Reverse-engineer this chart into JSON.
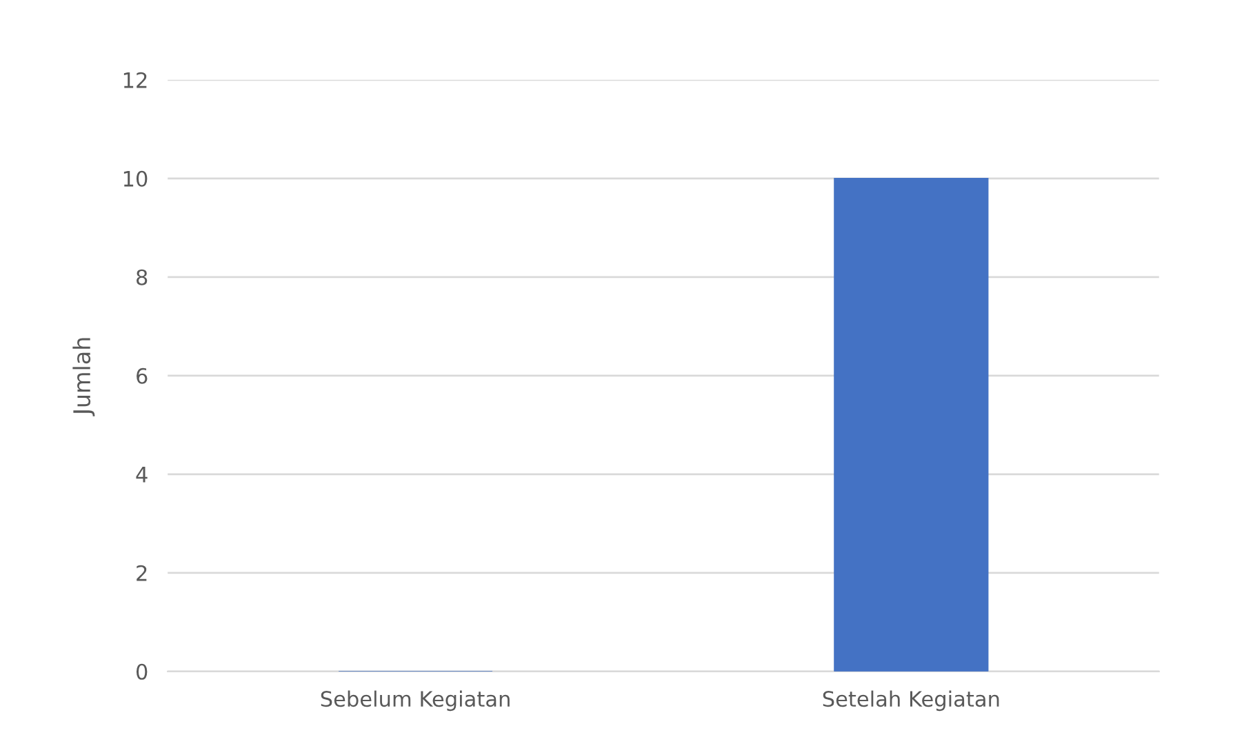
{
  "chart_data": {
    "type": "bar",
    "ylabel": "Jumlah",
    "categories": [
      "Sebelum Kegiatan",
      "Setelah Kegiatan"
    ],
    "values": [
      0,
      10
    ],
    "color": "#4472c4",
    "ylim": [
      0,
      12
    ],
    "yticks": [
      0,
      2,
      4,
      6,
      8,
      10,
      12
    ],
    "grid": "y",
    "legend": false
  }
}
